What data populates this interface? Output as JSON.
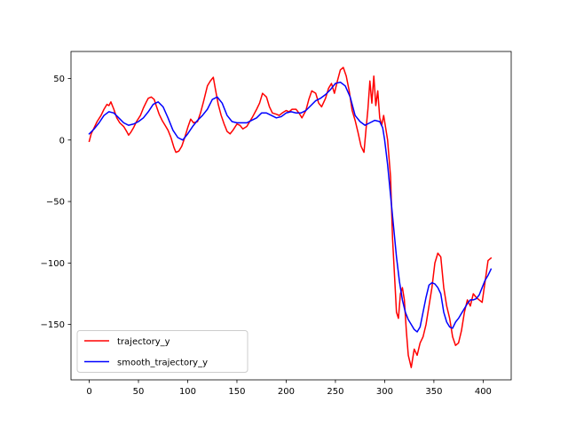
{
  "chart_data": {
    "type": "line",
    "xlim": [
      -18.5,
      428.5
    ],
    "ylim": [
      -195,
      72
    ],
    "x_ticks": [
      {
        "value": 0,
        "label": "0"
      },
      {
        "value": 50,
        "label": "50"
      },
      {
        "value": 100,
        "label": "100"
      },
      {
        "value": 150,
        "label": "150"
      },
      {
        "value": 200,
        "label": "200"
      },
      {
        "value": 250,
        "label": "250"
      },
      {
        "value": 300,
        "label": "300"
      },
      {
        "value": 350,
        "label": "350"
      },
      {
        "value": 400,
        "label": "400"
      }
    ],
    "y_ticks": [
      {
        "value": 50,
        "label": "50"
      },
      {
        "value": 0,
        "label": "0"
      },
      {
        "value": -50,
        "label": "−50"
      },
      {
        "value": -100,
        "label": "−100"
      },
      {
        "value": -150,
        "label": "−150"
      }
    ],
    "grid": false,
    "legend": {
      "location": "lower-left"
    },
    "series": [
      {
        "name": "trajectory_y",
        "color": "#ff0000",
        "x": [
          0,
          2,
          5,
          8,
          12,
          15,
          18,
          20,
          22,
          25,
          28,
          31,
          35,
          38,
          40,
          42,
          45,
          48,
          52,
          55,
          58,
          60,
          63,
          66,
          68,
          71,
          74,
          77,
          80,
          83,
          86,
          88,
          91,
          94,
          97,
          100,
          103,
          106,
          110,
          113,
          116,
          120,
          123,
          126,
          128,
          131,
          134,
          137,
          140,
          143,
          146,
          150,
          153,
          156,
          160,
          163,
          166,
          170,
          173,
          176,
          180,
          183,
          186,
          190,
          193,
          196,
          200,
          203,
          206,
          210,
          213,
          216,
          220,
          223,
          226,
          230,
          233,
          236,
          240,
          243,
          246,
          249,
          252,
          255,
          258,
          261,
          264,
          267,
          270,
          273,
          276,
          279,
          281,
          283,
          285,
          287,
          289,
          291,
          293,
          295,
          297,
          299,
          301,
          303,
          306,
          308,
          310,
          312,
          314,
          316,
          318,
          320,
          322,
          324,
          327,
          330,
          333,
          336,
          339,
          342,
          345,
          348,
          351,
          354,
          357,
          360,
          363,
          366,
          369,
          372,
          375,
          378,
          381,
          384,
          387,
          390,
          393,
          396,
          399,
          402,
          405,
          408
        ],
        "y": [
          -1,
          5,
          10,
          15,
          20,
          25,
          29,
          28,
          31,
          25,
          18,
          14,
          11,
          7,
          4,
          6,
          10,
          15,
          20,
          26,
          31,
          34,
          35,
          33,
          28,
          21,
          16,
          12,
          8,
          2,
          -6,
          -10,
          -9,
          -5,
          2,
          10,
          17,
          14,
          15,
          22,
          31,
          44,
          48,
          51,
          42,
          29,
          20,
          13,
          7,
          5,
          8,
          13,
          12,
          9,
          11,
          15,
          19,
          25,
          30,
          38,
          35,
          27,
          22,
          21,
          20,
          22,
          24,
          23,
          25,
          25,
          22,
          18,
          24,
          33,
          40,
          38,
          30,
          27,
          34,
          42,
          46,
          38,
          48,
          57,
          59,
          52,
          40,
          24,
          16,
          6,
          -5,
          -10,
          8,
          25,
          48,
          30,
          52,
          28,
          40,
          18,
          12,
          20,
          10,
          0,
          -30,
          -80,
          -110,
          -140,
          -145,
          -125,
          -120,
          -130,
          -155,
          -175,
          -185,
          -170,
          -175,
          -165,
          -160,
          -150,
          -135,
          -120,
          -100,
          -92,
          -95,
          -120,
          -135,
          -145,
          -160,
          -167,
          -165,
          -155,
          -140,
          -130,
          -135,
          -125,
          -128,
          -130,
          -132,
          -115,
          -98,
          -96
        ]
      },
      {
        "name": "smooth_trajectory_y",
        "color": "#0000ff",
        "x": [
          0,
          5,
          10,
          15,
          20,
          25,
          30,
          35,
          40,
          45,
          50,
          55,
          60,
          65,
          70,
          75,
          80,
          85,
          90,
          95,
          100,
          105,
          110,
          115,
          120,
          125,
          130,
          135,
          140,
          145,
          150,
          155,
          160,
          165,
          170,
          175,
          180,
          185,
          190,
          195,
          200,
          205,
          210,
          215,
          220,
          225,
          230,
          235,
          240,
          245,
          250,
          255,
          260,
          265,
          270,
          275,
          280,
          285,
          290,
          295,
          298,
          300,
          303,
          306,
          309,
          312,
          315,
          318,
          321,
          324,
          327,
          330,
          333,
          336,
          339,
          342,
          345,
          348,
          351,
          354,
          357,
          360,
          363,
          366,
          369,
          372,
          375,
          378,
          381,
          384,
          387,
          390,
          393,
          396,
          399,
          402,
          405,
          408
        ],
        "y": [
          5,
          9,
          14,
          20,
          23,
          22,
          18,
          14,
          12,
          13,
          15,
          18,
          23,
          29,
          31,
          27,
          18,
          8,
          2,
          0,
          5,
          11,
          16,
          20,
          25,
          33,
          35,
          30,
          20,
          15,
          14,
          14,
          14,
          16,
          18,
          22,
          22,
          20,
          18,
          19,
          22,
          23,
          22,
          22,
          24,
          28,
          32,
          34,
          37,
          41,
          46,
          47,
          44,
          35,
          20,
          15,
          12,
          14,
          16,
          15,
          10,
          0,
          -20,
          -45,
          -70,
          -95,
          -115,
          -130,
          -140,
          -146,
          -150,
          -154,
          -156,
          -152,
          -140,
          -128,
          -118,
          -116,
          -117,
          -120,
          -125,
          -140,
          -148,
          -152,
          -153,
          -148,
          -145,
          -141,
          -137,
          -133,
          -130,
          -130,
          -129,
          -126,
          -120,
          -114,
          -110,
          -105
        ]
      }
    ]
  }
}
